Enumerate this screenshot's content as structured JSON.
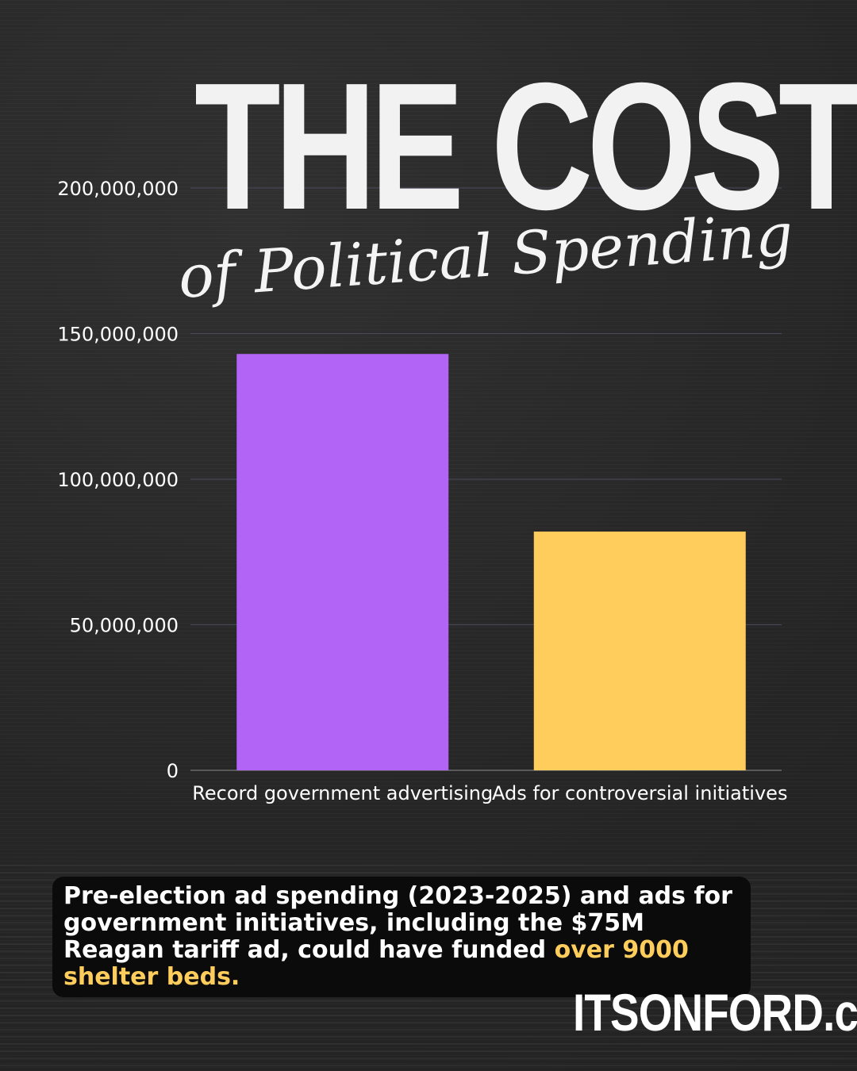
{
  "title": {
    "main": "THE COST",
    "sub": "of Political Spending"
  },
  "caption": {
    "text": "Pre-election ad spending (2023-2025) and ads for government initiatives, including the $75M Reagan tariff ad, could have funded ",
    "highlight": "over 9000 shelter beds."
  },
  "brand": "ITSONFORD.ca",
  "colors": {
    "background": "#2a2a2a",
    "bar_purple": "#b264f7",
    "bar_yellow": "#ffcd5c",
    "highlight": "#ffcd5c",
    "text": "#ffffff"
  },
  "chart_data": {
    "type": "bar",
    "categories": [
      "Record government advertising",
      "Ads for controversial initiatives"
    ],
    "values": [
      143000000,
      82000000
    ],
    "bar_colors": [
      "#b264f7",
      "#ffcd5c"
    ],
    "yticks": [
      "0",
      "50,000,000",
      "100,000,000",
      "150,000,000",
      "200,000,000"
    ],
    "ytick_values": [
      0,
      50000000,
      100000000,
      150000000,
      200000000
    ],
    "ylim": [
      0,
      200000000
    ],
    "grid": true,
    "legend": "none"
  }
}
